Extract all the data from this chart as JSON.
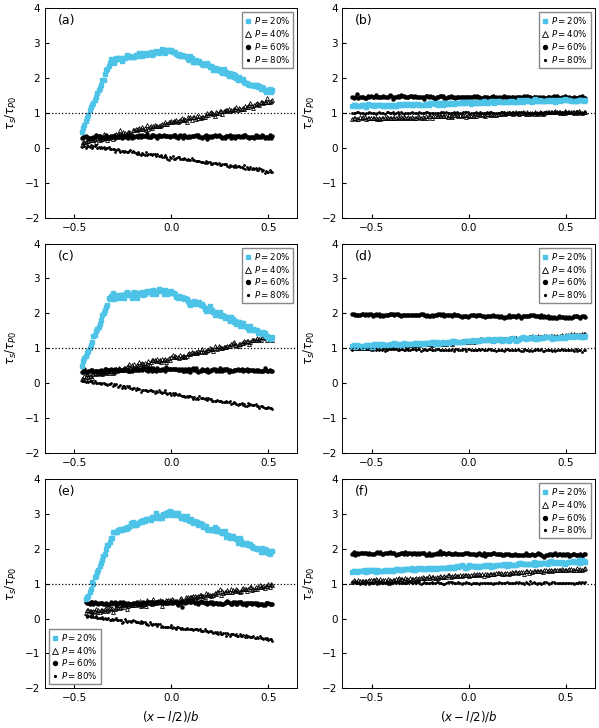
{
  "xlim": [
    -0.65,
    0.65
  ],
  "ylim": [
    -2,
    4
  ],
  "yticks": [
    -2,
    -1,
    0,
    1,
    2,
    3,
    4
  ],
  "xticks": [
    -0.5,
    0,
    0.5
  ],
  "xlabel": "$(x-l/2)/b$",
  "ylabel": "$\\tau_s/\\tau_{P0}$",
  "hline_y": 1.0,
  "legend_labels": [
    "$P = 20\\%$",
    "$P = 40\\%$",
    "$P = 60\\%$",
    "$P = 80\\%$"
  ],
  "panel_labels": [
    "(a)",
    "(b)",
    "(c)",
    "(d)",
    "(e)",
    "(f)"
  ],
  "blue_color": "#4dc3e8",
  "black_color": "black",
  "figsize": [
    5.99,
    7.28
  ],
  "dpi": 100,
  "n_points": 150
}
